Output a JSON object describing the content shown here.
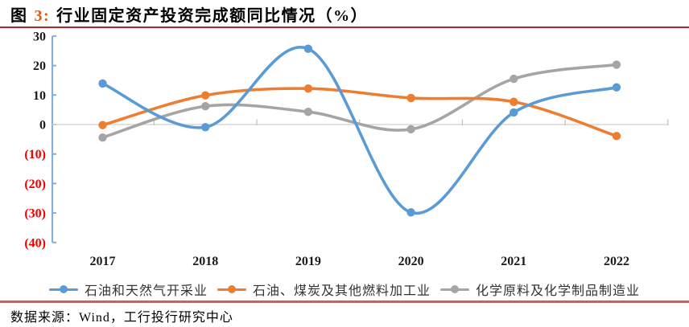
{
  "title": {
    "figure_label": "图",
    "figure_number": "3:",
    "text": "行业固定资产投资完成额同比情况（%）"
  },
  "source": {
    "label": "数据来源：Wind，工行投行研究中心"
  },
  "colors": {
    "title_accent": "#E05A10",
    "top_rule": "#A82A2E",
    "bottom_rule": "#B66A68",
    "axis": "#7EAFDE",
    "zero_line": "#D9D9D9",
    "category_tick": "#BFBFBF",
    "tick_label": "#1A1A1A",
    "negative_tick_label": "#EE0000",
    "legend_text": "#333333"
  },
  "chart_data": {
    "type": "line",
    "smooth": true,
    "title": "行业固定资产投资完成额同比情况（%）",
    "categories": [
      "2017",
      "2018",
      "2019",
      "2020",
      "2021",
      "2022"
    ],
    "series": [
      {
        "name": "石油和天然气开采业",
        "color": "#5B9BD5",
        "values": [
          13.9,
          -0.9,
          25.7,
          -29.8,
          4.1,
          12.6
        ]
      },
      {
        "name": "石油、煤炭及其他燃料加工业",
        "color": "#ED7D31",
        "values": [
          -0.2,
          9.9,
          12.2,
          9.0,
          7.7,
          -3.9
        ]
      },
      {
        "name": "化学原料及化学制品制造业",
        "color": "#A5A5A5",
        "values": [
          -4.4,
          6.2,
          4.3,
          -1.6,
          15.5,
          20.3
        ]
      }
    ],
    "xlabel": "",
    "ylabel": "",
    "ylim": [
      -40,
      30
    ],
    "ytick_step": 10,
    "ytick_labels": [
      "30",
      "20",
      "10",
      "0",
      "(10)",
      "(20)",
      "(30)",
      "(40)"
    ],
    "grid": "zero-line-only",
    "legend_position": "bottom"
  }
}
